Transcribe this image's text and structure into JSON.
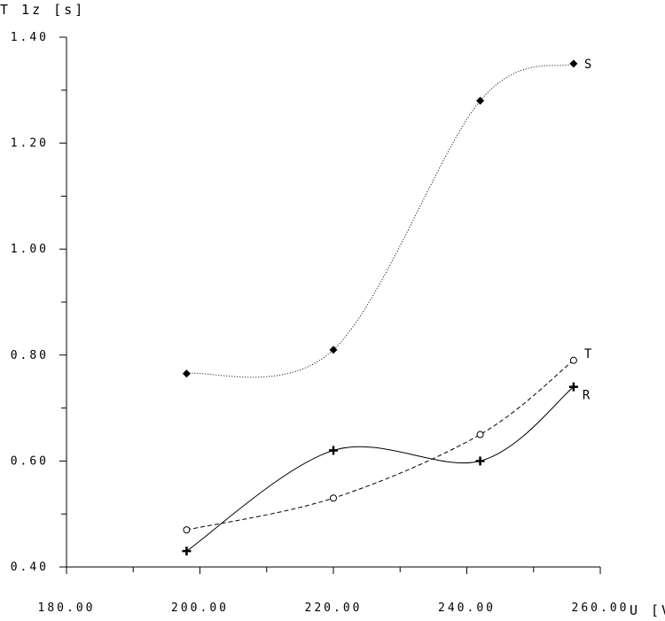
{
  "chart_data": {
    "type": "line",
    "xlabel": "U [V]",
    "ylabel": "T 1z [s]",
    "xlim": [
      180,
      260
    ],
    "ylim": [
      0.4,
      1.4
    ],
    "x_ticks": [
      "180.00",
      "200.00",
      "220.00",
      "240.00",
      "260.00"
    ],
    "y_ticks": [
      "0.40",
      "0.60",
      "0.80",
      "1.00",
      "1.20",
      "1.40"
    ],
    "grid": false,
    "series": [
      {
        "name": "S",
        "marker": "diamond",
        "line": "dotted",
        "x": [
          198,
          220,
          242,
          256
        ],
        "y": [
          0.765,
          0.81,
          1.28,
          1.35
        ]
      },
      {
        "name": "T",
        "marker": "circle",
        "line": "dashed",
        "x": [
          198,
          220,
          242,
          256
        ],
        "y": [
          0.47,
          0.53,
          0.65,
          0.79
        ]
      },
      {
        "name": "R",
        "marker": "plus",
        "line": "solid",
        "x": [
          198,
          220,
          242,
          256
        ],
        "y": [
          0.43,
          0.62,
          0.6,
          0.74
        ]
      }
    ]
  }
}
